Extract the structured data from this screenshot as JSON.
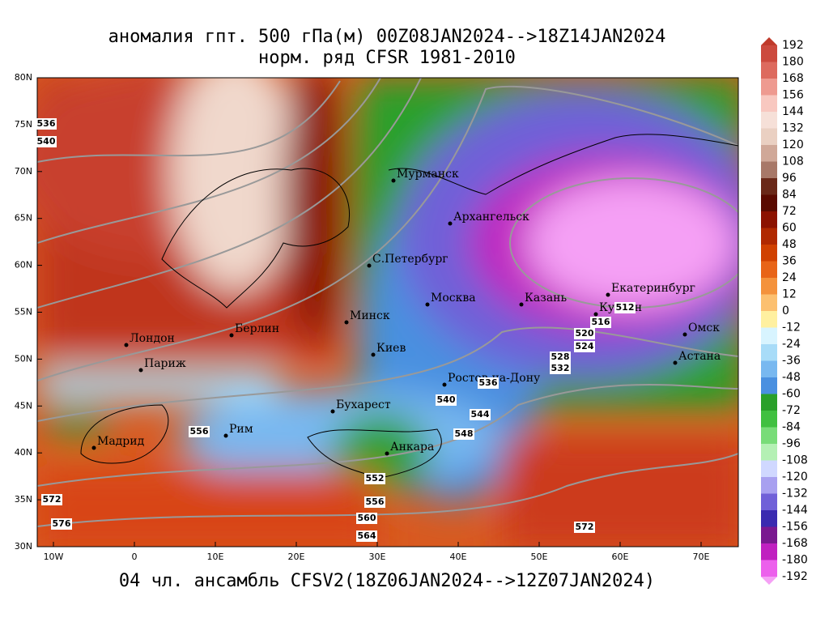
{
  "title": {
    "line1": "аномалия гпт. 500 гПа(м) 00Z08JAN2024-->18Z14JAN2024",
    "line2": "норм. ряд CFSR 1981-2010"
  },
  "footer": "04 чл. ансамбль CFSV2(18Z06JAN2024-->12Z07JAN2024)",
  "lat_labels": [
    "80N",
    "75N",
    "70N",
    "65N",
    "60N",
    "55N",
    "50N",
    "45N",
    "40N",
    "35N",
    "30N"
  ],
  "lon_labels": [
    "10W",
    "0",
    "10E",
    "20E",
    "30E",
    "40E",
    "50E",
    "60E",
    "70E"
  ],
  "cities": [
    "Мурманск",
    "Архангельск",
    "С.Петербург",
    "Москва",
    "Казань",
    "Екатеринбург",
    "Курган",
    "Омск",
    "Астана",
    "Минск",
    "Киев",
    "Берлин",
    "Лондон",
    "Париж",
    "Ростов-на-Дону",
    "Бухарест",
    "Рим",
    "Мадрид",
    "Анкара"
  ],
  "contour_labels": [
    536,
    540,
    512,
    516,
    520,
    524,
    528,
    532,
    536,
    540,
    544,
    548,
    556,
    552,
    556,
    560,
    564,
    572,
    576,
    572
  ],
  "colorbar": {
    "labels": [
      192,
      180,
      168,
      156,
      144,
      132,
      120,
      108,
      96,
      84,
      72,
      60,
      48,
      36,
      24,
      12,
      0,
      -12,
      -24,
      -36,
      -48,
      -60,
      -72,
      -84,
      -96,
      -108,
      -120,
      -132,
      -144,
      -156,
      -168,
      -180,
      -192
    ],
    "colors": [
      "#c03a2b",
      "#cc4a3e",
      "#dd6a5e",
      "#ee9a90",
      "#f8c8c0",
      "#f6e0d8",
      "#ead0c2",
      "#d0a898",
      "#a87868",
      "#6a2818",
      "#5a0a00",
      "#8c1200",
      "#b02800",
      "#d04000",
      "#e86418",
      "#f4923c",
      "#fcc070",
      "#fff0a0",
      "#d8f4ff",
      "#a8dcf8",
      "#78b8f0",
      "#4a90e0",
      "#2aa02a",
      "#40c040",
      "#78dc78",
      "#b4f0b4",
      "#d0d8ff",
      "#a8a0f0",
      "#7060d8",
      "#3a2ab0",
      "#7a1890",
      "#c020c0",
      "#ec60ec",
      "#f5a0f5"
    ]
  }
}
